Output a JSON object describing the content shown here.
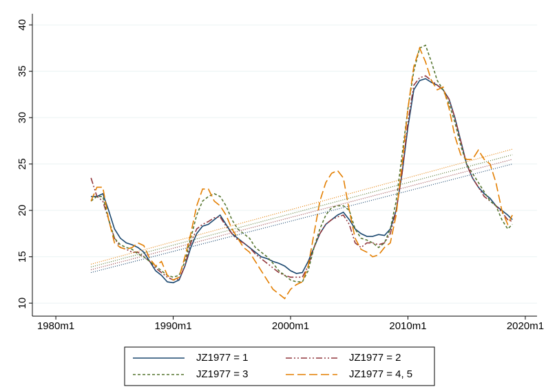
{
  "chart_data": {
    "type": "line",
    "x": [
      1983,
      1983.5,
      1984,
      1984.5,
      1985,
      1985.5,
      1986,
      1986.5,
      1987,
      1987.5,
      1988,
      1988.5,
      1989,
      1989.5,
      1990,
      1990.5,
      1991,
      1991.5,
      1992,
      1992.5,
      1993,
      1993.5,
      1994,
      1994.5,
      1995,
      1995.5,
      1996,
      1996.5,
      1997,
      1997.5,
      1998,
      1998.5,
      1999,
      1999.5,
      2000,
      2000.5,
      2001,
      2001.5,
      2002,
      2002.5,
      2003,
      2003.5,
      2004,
      2004.5,
      2005,
      2005.5,
      2006,
      2006.5,
      2007,
      2007.5,
      2008,
      2008.5,
      2009,
      2009.5,
      2010,
      2010.5,
      2011,
      2011.5,
      2012,
      2012.5,
      2013,
      2013.5,
      2014,
      2014.5,
      2015,
      2015.5,
      2016,
      2016.5,
      2017,
      2017.5,
      2018,
      2018.5,
      2018.9
    ],
    "series": [
      {
        "name": "JZ1977 = 1",
        "color": "#1a476f",
        "dash": "solid",
        "values": [
          21.5,
          21.5,
          21.8,
          20,
          18,
          17,
          16.5,
          16.3,
          16,
          15.5,
          14.5,
          13.5,
          13,
          12.3,
          12.2,
          12.5,
          14,
          16,
          17.5,
          18.3,
          18.5,
          19,
          19.5,
          18.5,
          17.5,
          17,
          16.5,
          16,
          15.5,
          15,
          14.8,
          14.5,
          14.3,
          14,
          13.5,
          13.2,
          13.3,
          14.5,
          16,
          17.5,
          18.5,
          19,
          19.5,
          19.8,
          19,
          18,
          17.5,
          17.2,
          17.2,
          17.4,
          17.3,
          18,
          20,
          24,
          29,
          33,
          34,
          34.2,
          33.8,
          33.5,
          33,
          32,
          30,
          27.5,
          25,
          23.5,
          22.5,
          21.8,
          21.3,
          20.5,
          20,
          19.5,
          19
        ]
      },
      {
        "name": "JZ1977 = 2",
        "color": "#90353b",
        "dash": "dashdot",
        "values": [
          23.5,
          21.5,
          21,
          19,
          17,
          16,
          15.8,
          15.5,
          15.5,
          15,
          14.5,
          13.8,
          13.3,
          12.8,
          12.5,
          12.6,
          14,
          16.5,
          18,
          18.5,
          18.8,
          19.2,
          19.3,
          18.3,
          17.5,
          16.8,
          16.5,
          16,
          15.3,
          14.8,
          14.3,
          13.8,
          13.3,
          13,
          12.8,
          12.8,
          12.8,
          14,
          16,
          17.5,
          18.5,
          19,
          19.3,
          19.5,
          18.5,
          16.5,
          16,
          16.5,
          16.5,
          16.3,
          16.5,
          17.5,
          20,
          24,
          29.5,
          33.5,
          34.3,
          34.5,
          34,
          33.5,
          33,
          32,
          30,
          27.5,
          25,
          23.5,
          22.5,
          21.5,
          21,
          20.5,
          19.8,
          19,
          18.8
        ]
      },
      {
        "name": "JZ1977 = 3",
        "color": "#55752f",
        "dash": "dash",
        "values": [
          21,
          21.5,
          21.5,
          19,
          17,
          16.3,
          16,
          15.8,
          15.3,
          15,
          14.5,
          14,
          13.5,
          13,
          12.8,
          13,
          14.5,
          17,
          19.5,
          21,
          21.5,
          21.8,
          21.5,
          20.5,
          19,
          18,
          17.5,
          17,
          16,
          15.5,
          15,
          14.3,
          13.5,
          13,
          12.5,
          12.3,
          12.3,
          13.5,
          16,
          18,
          19.5,
          20.3,
          20.5,
          20.5,
          20,
          18,
          17,
          16.8,
          16.5,
          16,
          16.5,
          18,
          21,
          26,
          31,
          35,
          37.5,
          37.8,
          36,
          34,
          33,
          31.5,
          29.5,
          27,
          25,
          24,
          23,
          22,
          21,
          20.5,
          19,
          18,
          18.5
        ]
      },
      {
        "name": "JZ1977 = 4, 5",
        "color": "#e37e00",
        "dash": "longdash",
        "values": [
          21,
          22.5,
          22.5,
          19,
          16.5,
          16,
          15.8,
          16,
          16.5,
          16.2,
          14.8,
          14,
          14.5,
          13,
          12.5,
          12.8,
          15,
          17.5,
          20.5,
          22.3,
          22.3,
          21,
          20.5,
          19.5,
          18,
          17,
          16,
          15.5,
          14.5,
          13.5,
          12.5,
          11.5,
          11,
          10.5,
          11.5,
          12,
          12.3,
          14,
          17.5,
          21,
          23,
          24,
          24.3,
          23.5,
          20,
          17,
          15.8,
          15.5,
          15,
          15.2,
          16,
          16.5,
          19.5,
          25,
          31,
          35.5,
          37.5,
          36,
          34,
          33,
          33.3,
          31,
          28,
          26,
          25.5,
          25.5,
          26.5,
          25.5,
          25,
          23,
          20,
          18.5,
          19.5
        ]
      },
      {
        "color": "#1a476f",
        "dash": "dot",
        "x": [
          1983,
          2018.9
        ],
        "values": [
          13.3,
          25
        ]
      },
      {
        "color": "#90353b",
        "dash": "dot",
        "x": [
          1983,
          2018.9
        ],
        "values": [
          13.6,
          25.5
        ]
      },
      {
        "color": "#55752f",
        "dash": "dot",
        "x": [
          1983,
          2018.9
        ],
        "values": [
          13.9,
          26
        ]
      },
      {
        "color": "#e37e00",
        "dash": "dot",
        "x": [
          1983,
          2018.9
        ],
        "values": [
          14.2,
          26.6
        ]
      }
    ],
    "xlim": [
      1978,
      2021
    ],
    "ylim": [
      8.6,
      41.2
    ],
    "xticks": [
      {
        "value": 1980,
        "label": "1980m1"
      },
      {
        "value": 1990,
        "label": "1990m1"
      },
      {
        "value": 2000,
        "label": "2000m1"
      },
      {
        "value": 2010,
        "label": "2010m1"
      },
      {
        "value": 2020,
        "label": "2020m1"
      }
    ],
    "yticks": [
      10,
      15,
      20,
      25,
      30,
      35,
      40
    ],
    "grid": true,
    "legend": "bottom"
  }
}
